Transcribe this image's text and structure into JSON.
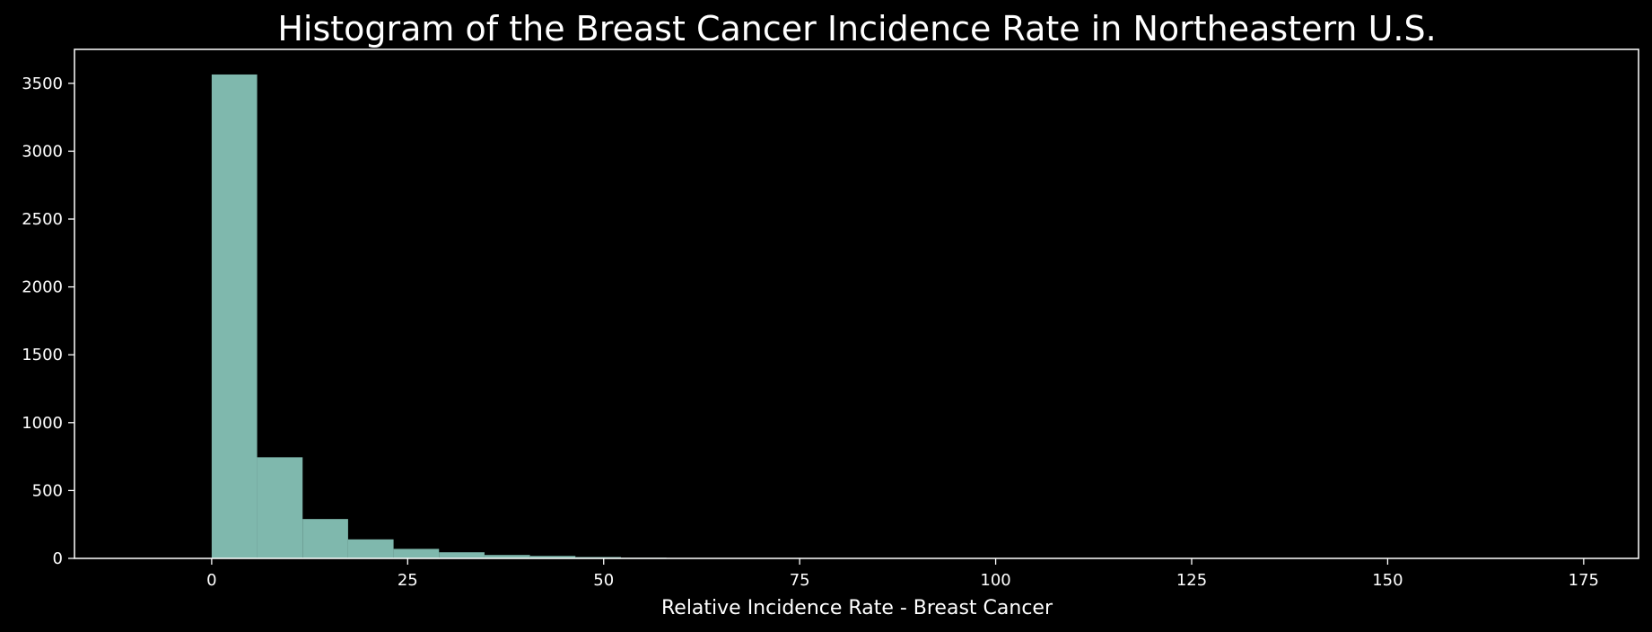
{
  "chart_data": {
    "type": "bar",
    "title": "Histogram of the Breast Cancer Incidence Rate in Northeastern U.S.",
    "xlabel": "Relative Incidence Rate - Breast Cancer",
    "ylabel": "",
    "xlim": [
      -17.5,
      182
    ],
    "ylim": [
      0,
      3750
    ],
    "xticks": [
      0,
      25,
      50,
      75,
      100,
      125,
      150,
      175
    ],
    "yticks": [
      0,
      500,
      1000,
      1500,
      2000,
      2500,
      3000,
      3500
    ],
    "bins": [
      {
        "start": 0.0,
        "end": 5.8,
        "value": 3565
      },
      {
        "start": 5.8,
        "end": 11.6,
        "value": 745
      },
      {
        "start": 11.6,
        "end": 17.4,
        "value": 290
      },
      {
        "start": 17.4,
        "end": 23.2,
        "value": 140
      },
      {
        "start": 23.2,
        "end": 29.0,
        "value": 70
      },
      {
        "start": 29.0,
        "end": 34.8,
        "value": 45
      },
      {
        "start": 34.8,
        "end": 40.6,
        "value": 25
      },
      {
        "start": 40.6,
        "end": 46.4,
        "value": 18
      },
      {
        "start": 46.4,
        "end": 52.2,
        "value": 10
      },
      {
        "start": 52.2,
        "end": 58.0,
        "value": 5
      },
      {
        "start": 58.0,
        "end": 63.8,
        "value": 3
      },
      {
        "start": 63.8,
        "end": 69.6,
        "value": 2
      },
      {
        "start": 69.6,
        "end": 75.4,
        "value": 1
      }
    ],
    "bar_color": "#7fb8ad",
    "grid": false,
    "background": "#000000"
  }
}
